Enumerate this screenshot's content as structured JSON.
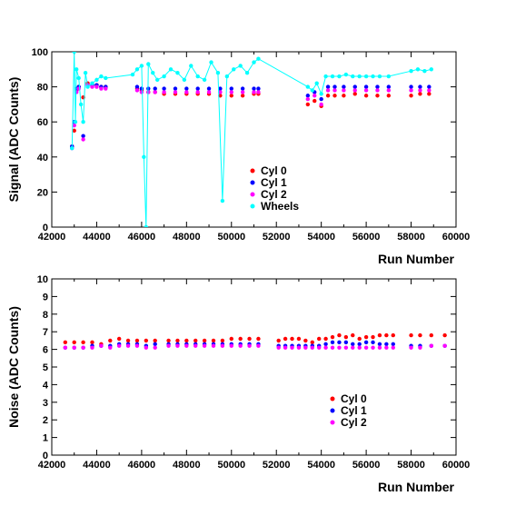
{
  "chart_data": [
    {
      "type": "scatter",
      "xlabel": "Run Number",
      "ylabel": "Signal (ADC Counts)",
      "xlim": [
        42000,
        60000
      ],
      "ylim": [
        0,
        100
      ],
      "xticks": [
        "42000",
        "44000",
        "46000",
        "48000",
        "50000",
        "52000",
        "54000",
        "56000",
        "58000",
        "60000"
      ],
      "yticks": [
        "0",
        "20",
        "40",
        "60",
        "80",
        "100"
      ],
      "legend": "center-bottom",
      "series": [
        {
          "name": "Cyl 0",
          "color": "#ff0000",
          "x": [
            42900,
            43000,
            43100,
            43200,
            43400,
            43600,
            43800,
            44000,
            44200,
            44400,
            45800,
            46000,
            46300,
            46600,
            47000,
            47500,
            48000,
            48500,
            49000,
            49500,
            50000,
            50500,
            51000,
            51200,
            53400,
            53700,
            54000,
            54300,
            54600,
            55000,
            55500,
            56000,
            56500,
            57000,
            58000,
            58400,
            58800
          ],
          "y": [
            46,
            55,
            78,
            80,
            74,
            82,
            81,
            81,
            80,
            80,
            79,
            78,
            77,
            77,
            76,
            76,
            76,
            76,
            76,
            75,
            75,
            75,
            76,
            76,
            70,
            72,
            69,
            75,
            75,
            75,
            76,
            75,
            75,
            75,
            75,
            76,
            76
          ]
        },
        {
          "name": "Cyl 1",
          "color": "#0000ff",
          "x": [
            42900,
            43000,
            43100,
            43200,
            43400,
            43600,
            43800,
            44000,
            44200,
            44400,
            45800,
            46000,
            46300,
            46600,
            47000,
            47500,
            48000,
            48500,
            49000,
            49500,
            50000,
            50500,
            51000,
            51200,
            53400,
            53700,
            54000,
            54300,
            54600,
            55000,
            55500,
            56000,
            56500,
            57000,
            58000,
            58400,
            58800
          ],
          "y": [
            46,
            60,
            79,
            80,
            52,
            81,
            81,
            81,
            80,
            80,
            80,
            79,
            79,
            79,
            79,
            79,
            79,
            79,
            79,
            79,
            79,
            79,
            79,
            79,
            75,
            77,
            73,
            80,
            80,
            80,
            80,
            80,
            80,
            80,
            80,
            80,
            80
          ]
        },
        {
          "name": "Cyl 2",
          "color": "#ff00ff",
          "x": [
            42900,
            43000,
            43100,
            43200,
            43400,
            43600,
            43800,
            44000,
            44200,
            44400,
            45800,
            46000,
            46300,
            46600,
            47000,
            47500,
            48000,
            48500,
            49000,
            49500,
            50000,
            50500,
            51000,
            51200,
            53400,
            53700,
            54000,
            54300,
            54600,
            55000,
            55500,
            56000,
            56500,
            57000,
            58000,
            58400,
            58800
          ],
          "y": [
            45,
            58,
            77,
            79,
            50,
            81,
            80,
            80,
            79,
            79,
            78,
            77,
            77,
            77,
            77,
            77,
            77,
            77,
            77,
            77,
            77,
            77,
            77,
            77,
            73,
            75,
            70,
            78,
            78,
            78,
            78,
            78,
            78,
            78,
            78,
            78,
            78
          ]
        },
        {
          "name": "Wheels",
          "color": "#00ffff",
          "x": [
            42900,
            43000,
            43050,
            43100,
            43200,
            43300,
            43400,
            43500,
            43600,
            43800,
            44000,
            44200,
            44400,
            45600,
            45800,
            46000,
            46100,
            46200,
            46300,
            46500,
            46700,
            47000,
            47300,
            47600,
            47900,
            48200,
            48500,
            48800,
            49100,
            49400,
            49600,
            49800,
            50100,
            50400,
            50700,
            51000,
            51200,
            53400,
            53600,
            53800,
            54000,
            54200,
            54500,
            54800,
            55100,
            55400,
            55700,
            56000,
            56300,
            56600,
            57000,
            58000,
            58300,
            58600,
            58900
          ],
          "y": [
            45,
            100,
            60,
            90,
            85,
            70,
            60,
            88,
            80,
            82,
            84,
            86,
            85,
            87,
            90,
            92,
            40,
            0,
            93,
            88,
            84,
            86,
            90,
            88,
            84,
            92,
            86,
            84,
            94,
            88,
            15,
            86,
            90,
            92,
            88,
            94,
            96,
            80,
            78,
            82,
            76,
            86,
            86,
            86,
            87,
            86,
            86,
            86,
            86,
            86,
            86,
            89,
            90,
            89,
            90
          ]
        }
      ]
    },
    {
      "type": "scatter",
      "xlabel": "Run Number",
      "ylabel": "Noise (ADC Counts)",
      "xlim": [
        42000,
        60000
      ],
      "ylim": [
        0,
        10
      ],
      "xticks": [
        "42000",
        "44000",
        "46000",
        "48000",
        "50000",
        "52000",
        "54000",
        "56000",
        "58000",
        "60000"
      ],
      "yticks": [
        "0",
        "1",
        "2",
        "3",
        "4",
        "5",
        "6",
        "7",
        "8",
        "9",
        "10"
      ],
      "legend": "center-bottom",
      "series": [
        {
          "name": "Cyl 0",
          "color": "#ff0000",
          "x": [
            42600,
            43000,
            43400,
            43800,
            44200,
            44600,
            45000,
            45400,
            45800,
            46200,
            46600,
            47200,
            47600,
            48000,
            48400,
            48800,
            49200,
            49600,
            50000,
            50400,
            50800,
            51200,
            52100,
            52400,
            52700,
            53000,
            53300,
            53600,
            53900,
            54200,
            54500,
            54800,
            55100,
            55400,
            55700,
            56000,
            56300,
            56600,
            56900,
            57200,
            58000,
            58400,
            58900,
            59500
          ],
          "y": [
            6.4,
            6.4,
            6.4,
            6.4,
            6.3,
            6.5,
            6.6,
            6.5,
            6.5,
            6.5,
            6.5,
            6.5,
            6.5,
            6.5,
            6.5,
            6.5,
            6.5,
            6.5,
            6.6,
            6.6,
            6.6,
            6.6,
            6.5,
            6.6,
            6.6,
            6.6,
            6.5,
            6.4,
            6.6,
            6.6,
            6.7,
            6.8,
            6.7,
            6.8,
            6.6,
            6.7,
            6.7,
            6.8,
            6.8,
            6.8,
            6.8,
            6.8,
            6.8,
            6.8
          ]
        },
        {
          "name": "Cyl 1",
          "color": "#0000ff",
          "x": [
            42600,
            43000,
            43400,
            43800,
            44200,
            44600,
            45000,
            45400,
            45800,
            46200,
            46600,
            47200,
            47600,
            48000,
            48400,
            48800,
            49200,
            49600,
            50000,
            50400,
            50800,
            51200,
            52100,
            52400,
            52700,
            53000,
            53300,
            53600,
            53900,
            54200,
            54500,
            54800,
            55100,
            55400,
            55700,
            56000,
            56300,
            56600,
            56900,
            57200,
            58000,
            58400,
            58900,
            59500
          ],
          "y": [
            6.1,
            6.1,
            6.1,
            6.2,
            6.2,
            6.2,
            6.3,
            6.3,
            6.3,
            6.2,
            6.3,
            6.3,
            6.3,
            6.3,
            6.3,
            6.3,
            6.3,
            6.3,
            6.3,
            6.3,
            6.3,
            6.3,
            6.2,
            6.2,
            6.2,
            6.2,
            6.2,
            6.2,
            6.2,
            6.3,
            6.4,
            6.4,
            6.4,
            6.3,
            6.3,
            6.4,
            6.4,
            6.3,
            6.3,
            6.3,
            6.2,
            6.2,
            6.2,
            6.2
          ]
        },
        {
          "name": "Cyl 2",
          "color": "#ff00ff",
          "x": [
            42600,
            43000,
            43400,
            43800,
            44200,
            44600,
            45000,
            45400,
            45800,
            46200,
            46600,
            47200,
            47600,
            48000,
            48400,
            48800,
            49200,
            49600,
            50000,
            50400,
            50800,
            51200,
            52100,
            52400,
            52700,
            53000,
            53300,
            53600,
            53900,
            54200,
            54500,
            54800,
            55100,
            55400,
            55700,
            56000,
            56300,
            56600,
            56900,
            57200,
            58000,
            58400,
            58900,
            59500
          ],
          "y": [
            6.1,
            6.1,
            6.1,
            6.1,
            6.2,
            6.1,
            6.2,
            6.2,
            6.2,
            6.1,
            6.1,
            6.2,
            6.2,
            6.2,
            6.2,
            6.2,
            6.2,
            6.2,
            6.2,
            6.2,
            6.2,
            6.2,
            6.1,
            6.1,
            6.1,
            6.1,
            6.1,
            6.1,
            6.1,
            6.1,
            6.1,
            6.1,
            6.1,
            6.1,
            6.1,
            6.1,
            6.1,
            6.1,
            6.1,
            6.1,
            6.1,
            6.1,
            6.2,
            6.2
          ]
        }
      ]
    }
  ]
}
